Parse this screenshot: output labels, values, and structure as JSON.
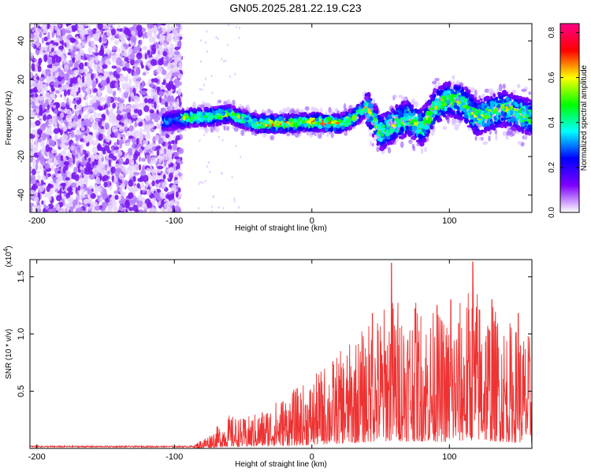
{
  "title": "GN05.2025.281.22.19.C23",
  "chart_data": [
    {
      "type": "heatmap",
      "xlabel": "Height of straight line (km)",
      "ylabel": "Frequency (Hz)",
      "xlim": [
        -205,
        160
      ],
      "ylim": [
        -49,
        49
      ],
      "xticks": [
        -200,
        -100,
        0,
        100
      ],
      "yticks": [
        -40,
        -20,
        0,
        20,
        40
      ],
      "colorbar": {
        "label": "Normalized spectral amplitude",
        "range": [
          0,
          0.84
        ],
        "ticks": [
          0.0,
          0.2,
          0.4,
          0.6,
          0.8
        ],
        "colors": [
          "#ffffff",
          "#7f00ff",
          "#0000ff",
          "#00ffff",
          "#00ff00",
          "#ffff00",
          "#ff0000",
          "#ff0088"
        ]
      },
      "ridge": [
        {
          "x": -108,
          "y": -2
        },
        {
          "x": -90,
          "y": 0
        },
        {
          "x": -70,
          "y": 1
        },
        {
          "x": -60,
          "y": 2
        },
        {
          "x": -40,
          "y": -3
        },
        {
          "x": -20,
          "y": -3
        },
        {
          "x": 0,
          "y": -2
        },
        {
          "x": 20,
          "y": -3
        },
        {
          "x": 30,
          "y": 0
        },
        {
          "x": 40,
          "y": 6
        },
        {
          "x": 50,
          "y": -8
        },
        {
          "x": 60,
          "y": -3
        },
        {
          "x": 70,
          "y": 0
        },
        {
          "x": 80,
          "y": -5
        },
        {
          "x": 90,
          "y": 6
        },
        {
          "x": 100,
          "y": 10
        },
        {
          "x": 110,
          "y": 8
        },
        {
          "x": 120,
          "y": 0
        },
        {
          "x": 140,
          "y": 5
        },
        {
          "x": 160,
          "y": 0
        }
      ],
      "grid": false
    },
    {
      "type": "line",
      "xlabel": "Height of straight line (km)",
      "ylabel": "SNR (10 * v/v)",
      "yscale_label": "(x10",
      "yscale_exp": "4",
      "yscale_close": ")",
      "xlim": [
        -205,
        160
      ],
      "ylim": [
        0,
        1.65
      ],
      "xticks": [
        -200,
        -100,
        0,
        100
      ],
      "yticks": [
        0.5,
        1.0,
        1.5
      ],
      "ytick_labels": [
        "0.5",
        "1.0",
        "1.5"
      ],
      "color": "#ee3333",
      "envelope": [
        {
          "x": -205,
          "y": 0.02
        },
        {
          "x": -100,
          "y": 0.02
        },
        {
          "x": -85,
          "y": 0.04
        },
        {
          "x": -75,
          "y": 0.12
        },
        {
          "x": -60,
          "y": 0.28
        },
        {
          "x": -50,
          "y": 0.25
        },
        {
          "x": -40,
          "y": 0.3
        },
        {
          "x": -20,
          "y": 0.45
        },
        {
          "x": 0,
          "y": 0.58
        },
        {
          "x": 10,
          "y": 0.72
        },
        {
          "x": 25,
          "y": 0.85
        },
        {
          "x": 45,
          "y": 1.1
        },
        {
          "x": 60,
          "y": 1.3
        },
        {
          "x": 80,
          "y": 1.2
        },
        {
          "x": 100,
          "y": 1.1
        },
        {
          "x": 117,
          "y": 1.4
        },
        {
          "x": 140,
          "y": 1.1
        },
        {
          "x": 160,
          "y": 0.95
        }
      ],
      "peaks": [
        {
          "x": 44,
          "y": 1.18
        },
        {
          "x": 58,
          "y": 1.62
        },
        {
          "x": 75,
          "y": 1.22
        },
        {
          "x": 91,
          "y": 1.25
        },
        {
          "x": 101,
          "y": 1.3
        },
        {
          "x": 117,
          "y": 1.63
        },
        {
          "x": 131,
          "y": 1.3
        },
        {
          "x": 150,
          "y": 1.18
        }
      ]
    }
  ]
}
